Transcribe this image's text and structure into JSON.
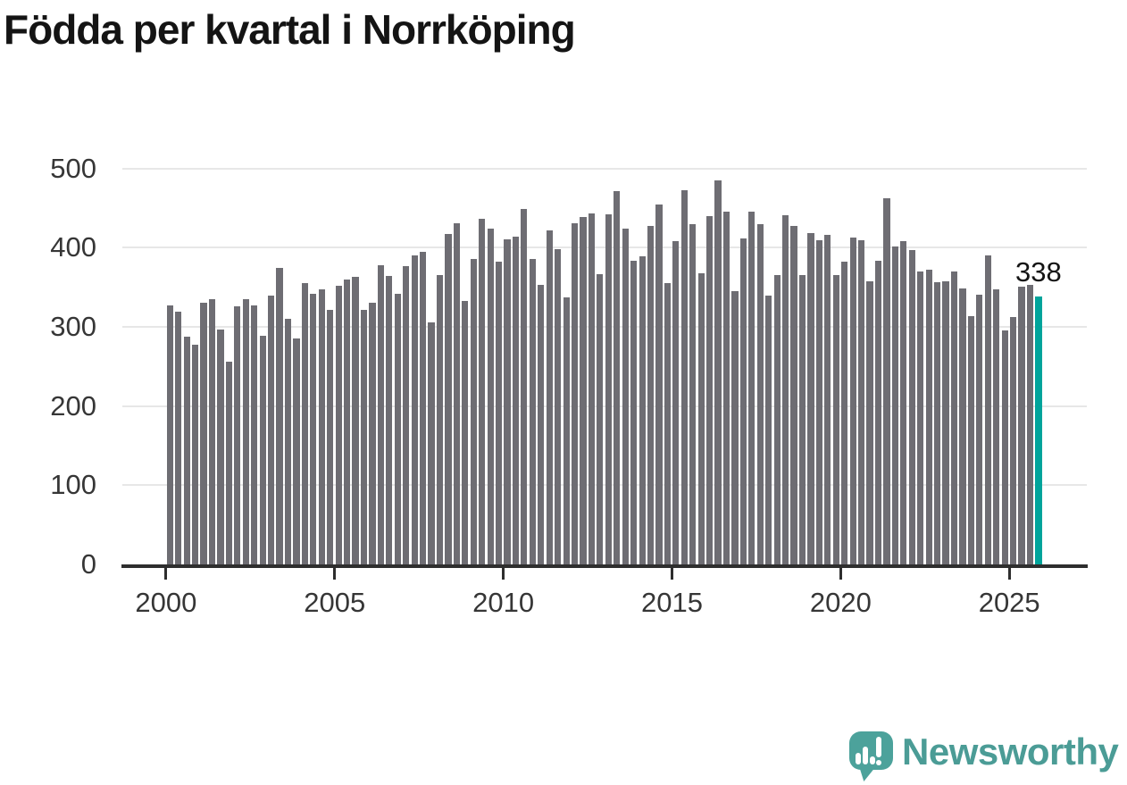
{
  "title": "Födda per kvartal i Norrköping",
  "chart_data": {
    "type": "bar",
    "title": "Födda per kvartal i Norrköping",
    "x_start": "2000 Q1",
    "x_end": "2025 Q4",
    "periods_per_year": 4,
    "values": [
      327,
      319,
      288,
      277,
      331,
      335,
      297,
      256,
      326,
      335,
      327,
      289,
      340,
      374,
      310,
      285,
      355,
      342,
      347,
      321,
      352,
      360,
      363,
      321,
      331,
      378,
      364,
      342,
      377,
      390,
      395,
      306,
      366,
      417,
      431,
      333,
      386,
      437,
      424,
      382,
      410,
      414,
      449,
      386,
      353,
      422,
      398,
      337,
      431,
      439,
      443,
      367,
      442,
      471,
      424,
      383,
      389,
      428,
      455,
      355,
      408,
      473,
      430,
      368,
      440,
      485,
      446,
      345,
      412,
      446,
      430,
      340,
      366,
      441,
      427,
      366,
      418,
      409,
      416,
      366,
      382,
      413,
      409,
      358,
      383,
      463,
      401,
      408,
      397,
      370,
      372,
      356,
      358,
      370,
      348,
      313,
      341,
      390,
      347,
      296,
      312,
      351,
      353,
      338
    ],
    "highlight_index": 103,
    "highlight_value_label": "338",
    "y_ticks": [
      0,
      100,
      200,
      300,
      400,
      500
    ],
    "ylim": [
      0,
      500
    ],
    "x_ticks": [
      {
        "label": "2000",
        "bar_index": 0
      },
      {
        "label": "2005",
        "bar_index": 20
      },
      {
        "label": "2010",
        "bar_index": 40
      },
      {
        "label": "2015",
        "bar_index": 60
      },
      {
        "label": "2020",
        "bar_index": 80
      },
      {
        "label": "2025",
        "bar_index": 100
      }
    ],
    "grid": "horizontal",
    "legend": "none",
    "colors": {
      "bar": "#6e6d73",
      "highlight": "#00a49b",
      "gridline": "#e7e7e7",
      "axis": "#2e2e2e",
      "tick_text": "#363636",
      "title_text": "#141414"
    }
  },
  "annotation": {
    "last_value": "338"
  },
  "footer": {
    "brand": "Newsworthy",
    "logo_icon": "newsworthy-speech-bubble-chart-icon",
    "brand_color": "#4b9c96"
  }
}
